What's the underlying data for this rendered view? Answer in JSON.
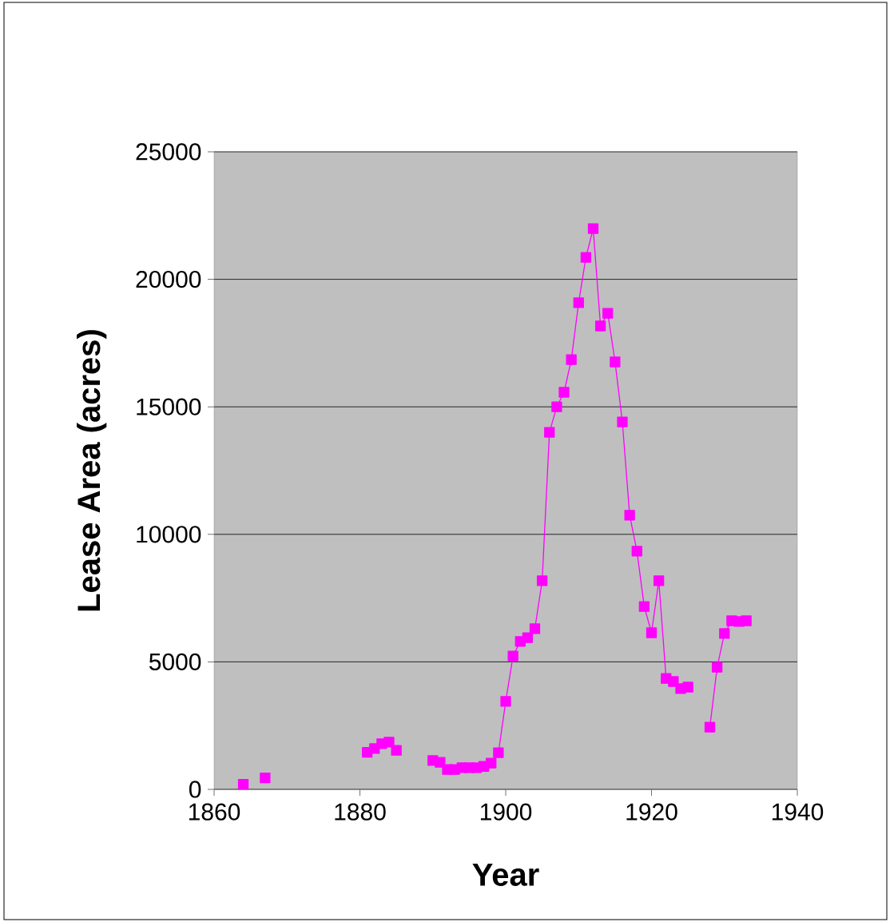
{
  "chart_data": {
    "type": "line",
    "xlabel": "Year",
    "ylabel": "Lease Area (acres)",
    "x": [
      1864,
      1865,
      1867,
      1868,
      1881,
      1882,
      1883,
      1884,
      1885,
      1886,
      1890,
      1891,
      1892,
      1893,
      1894,
      1895,
      1896,
      1897,
      1898,
      1899,
      1900,
      1901,
      1902,
      1903,
      1904,
      1905,
      1906,
      1907,
      1908,
      1909,
      1910,
      1911,
      1912,
      1913,
      1914,
      1915,
      1916,
      1917,
      1918,
      1919,
      1920,
      1921,
      1922,
      1923,
      1924,
      1925,
      1926,
      1928,
      1929,
      1930,
      1931,
      1932,
      1933
    ],
    "values": [
      200,
      null,
      450,
      null,
      1450,
      1600,
      1790,
      1850,
      1530,
      null,
      1130,
      1060,
      780,
      780,
      850,
      850,
      850,
      900,
      1030,
      1440,
      3450,
      5230,
      5800,
      5950,
      6300,
      8180,
      14000,
      15000,
      15570,
      16850,
      19080,
      20860,
      21990,
      18170,
      18670,
      16760,
      14410,
      10750,
      9340,
      7170,
      6140,
      8180,
      4350,
      4230,
      3950,
      4010,
      null,
      2440,
      4790,
      6110,
      6610,
      6580,
      6610
    ],
    "color": "#ff00ff",
    "marker": "square",
    "grid": "y",
    "xlim": [
      1860,
      1940
    ],
    "ylim": [
      0,
      25000
    ],
    "xticks": [
      1860,
      1880,
      1900,
      1920,
      1940
    ],
    "yticks": [
      0,
      5000,
      10000,
      15000,
      20000,
      25000
    ]
  }
}
